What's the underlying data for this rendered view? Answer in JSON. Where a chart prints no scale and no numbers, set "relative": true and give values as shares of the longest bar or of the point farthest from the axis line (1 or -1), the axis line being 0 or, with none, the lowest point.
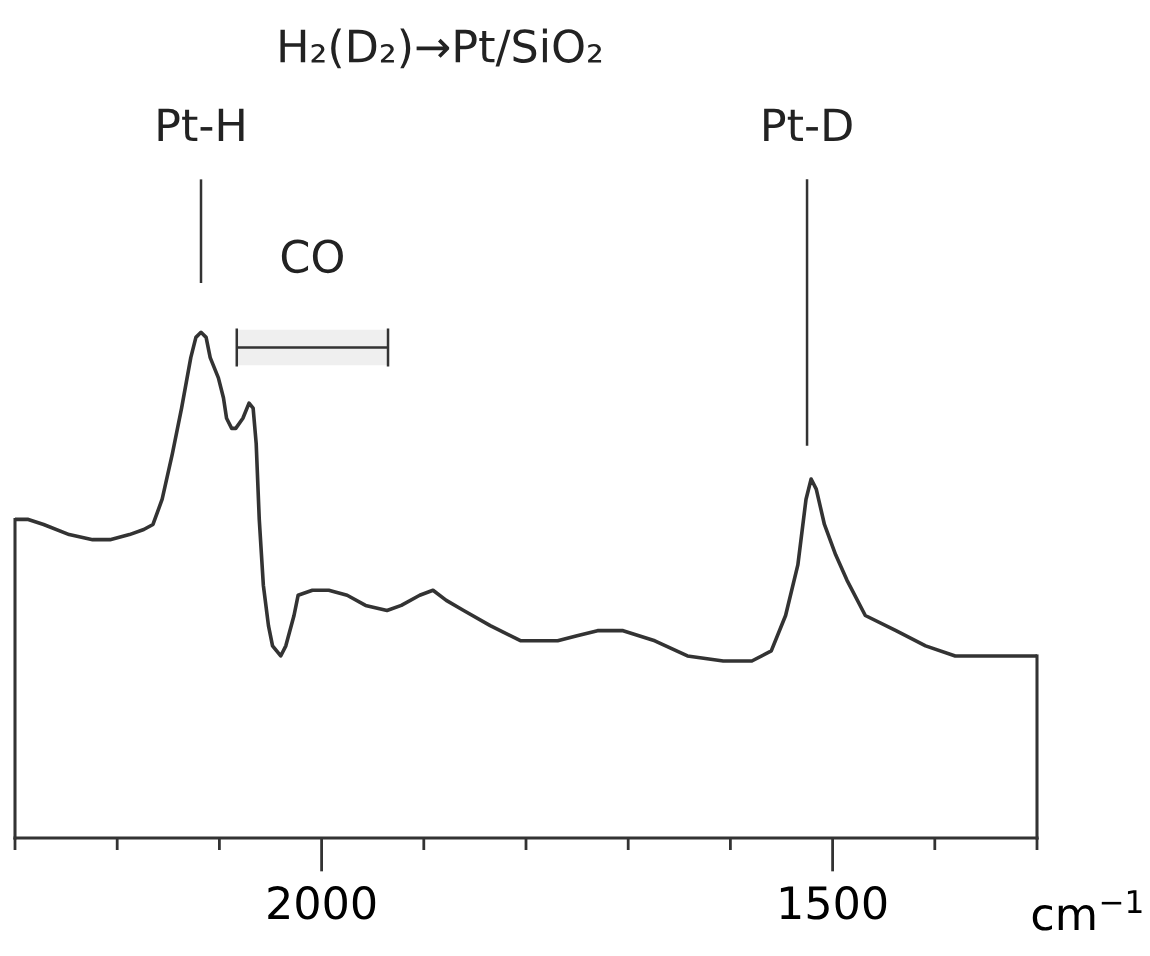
{
  "chart_data": {
    "type": "line",
    "title": "H₂(D₂)→Pt/SiO₂",
    "xlabel": "cm$^{−1}$",
    "relative": true,
    "xlim": [
      2300,
      1300
    ],
    "xticks": [
      {
        "value": 2300,
        "label": null
      },
      {
        "value": 2200,
        "label": null
      },
      {
        "value": 2100,
        "label": null
      },
      2000,
      {
        "value": 1900,
        "label": null
      },
      {
        "value": 1800,
        "label": null
      },
      {
        "value": 1700,
        "label": null
      },
      {
        "value": 1600,
        "label": null
      },
      1500,
      {
        "value": 1400,
        "label": null
      },
      {
        "value": 1300,
        "label": null
      }
    ],
    "grid": false,
    "legend": false,
    "tick_labels": "x",
    "marker": "none",
    "line_style": "solid",
    "series": [
      {
        "color": "#333333",
        "x": [
          2300,
          2287,
          2272,
          2247,
          2224,
          2207,
          2188,
          2174,
          2165,
          2156,
          2146,
          2137,
          2128,
          2123,
          2118,
          2113,
          2109,
          2101,
          2096,
          2093,
          2088,
          2084,
          2077,
          2071,
          2067,
          2064,
          2061,
          2057,
          2052,
          2048,
          2040,
          2035,
          2027,
          2023,
          2009,
          1993,
          1975,
          1957,
          1936,
          1922,
          1904,
          1891,
          1878,
          1861,
          1835,
          1805,
          1769,
          1750,
          1730,
          1705,
          1674,
          1642,
          1607,
          1579,
          1560,
          1546,
          1534,
          1526,
          1521,
          1516,
          1508,
          1497,
          1486,
          1468,
          1438,
          1409,
          1380,
          1350,
          1323,
          1300
        ],
        "values": [
          0.63,
          0.63,
          0.62,
          0.6,
          0.59,
          0.59,
          0.6,
          0.61,
          0.62,
          0.67,
          0.76,
          0.85,
          0.95,
          0.99,
          1.0,
          0.99,
          0.95,
          0.91,
          0.87,
          0.83,
          0.81,
          0.81,
          0.83,
          0.86,
          0.85,
          0.78,
          0.63,
          0.5,
          0.42,
          0.38,
          0.36,
          0.38,
          0.44,
          0.48,
          0.49,
          0.49,
          0.48,
          0.46,
          0.45,
          0.46,
          0.48,
          0.49,
          0.47,
          0.45,
          0.42,
          0.39,
          0.39,
          0.4,
          0.41,
          0.41,
          0.39,
          0.36,
          0.35,
          0.35,
          0.37,
          0.44,
          0.54,
          0.67,
          0.71,
          0.69,
          0.62,
          0.56,
          0.51,
          0.44,
          0.41,
          0.38,
          0.36,
          0.36,
          0.36,
          0.36
        ]
      }
    ],
    "ref_lines": [
      {
        "axis": "x",
        "value": 2118,
        "label": "Pt-H",
        "color": "#333333",
        "line_style": "solid"
      },
      {
        "axis": "x",
        "value": 1525,
        "label": "Pt-D",
        "color": "#333333",
        "line_style": "solid"
      }
    ],
    "bands": [
      {
        "axis": "x",
        "from": 2083,
        "to": 1935,
        "label": "CO",
        "color": "#333333"
      }
    ]
  }
}
